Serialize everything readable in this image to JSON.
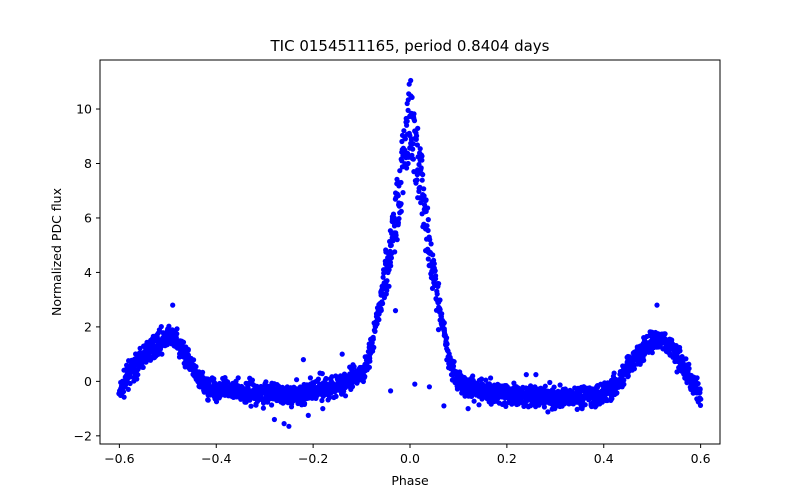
{
  "chart_data": {
    "type": "scatter",
    "title": "TIC 0154511165, period 0.8404 days",
    "xlabel": "Phase",
    "ylabel": "Normalized PDC flux",
    "xlim": [
      -0.64,
      0.64
    ],
    "ylim": [
      -2.3,
      11.8
    ],
    "xticks": [
      -0.6,
      -0.4,
      -0.2,
      0.0,
      0.2,
      0.4,
      0.6
    ],
    "xtick_labels": [
      "−0.6",
      "−0.4",
      "−0.2",
      "0.0",
      "0.2",
      "0.4",
      "0.6"
    ],
    "yticks": [
      -2,
      0,
      2,
      4,
      6,
      8,
      10
    ],
    "ytick_labels": [
      "−2",
      "0",
      "2",
      "4",
      "6",
      "8",
      "10"
    ],
    "grid": false,
    "marker_color": "#0000ff",
    "curve_profile": [
      [
        -0.6,
        -0.5
      ],
      [
        -0.58,
        0.3
      ],
      [
        -0.55,
        0.9
      ],
      [
        -0.52,
        1.4
      ],
      [
        -0.5,
        1.6
      ],
      [
        -0.48,
        1.45
      ],
      [
        -0.46,
        0.9
      ],
      [
        -0.44,
        0.1
      ],
      [
        -0.42,
        -0.2
      ],
      [
        -0.38,
        -0.3
      ],
      [
        -0.3,
        -0.45
      ],
      [
        -0.24,
        -0.5
      ],
      [
        -0.18,
        -0.3
      ],
      [
        -0.14,
        -0.1
      ],
      [
        -0.1,
        0.2
      ],
      [
        -0.08,
        1.2
      ],
      [
        -0.06,
        3.0
      ],
      [
        -0.04,
        5.3
      ],
      [
        -0.02,
        7.8
      ],
      [
        0.0,
        10.5
      ],
      [
        0.02,
        8.4
      ],
      [
        0.04,
        5.2
      ],
      [
        0.06,
        2.8
      ],
      [
        0.08,
        0.8
      ],
      [
        0.1,
        0.0
      ],
      [
        0.14,
        -0.3
      ],
      [
        0.2,
        -0.5
      ],
      [
        0.3,
        -0.6
      ],
      [
        0.38,
        -0.5
      ],
      [
        0.42,
        -0.2
      ],
      [
        0.44,
        0.2
      ],
      [
        0.46,
        0.7
      ],
      [
        0.5,
        1.5
      ],
      [
        0.52,
        1.6
      ],
      [
        0.54,
        1.3
      ],
      [
        0.56,
        0.7
      ],
      [
        0.58,
        0.0
      ],
      [
        0.6,
        -0.5
      ]
    ],
    "outliers": [
      [
        -0.49,
        2.8
      ],
      [
        0.51,
        2.8
      ],
      [
        -0.22,
        0.8
      ],
      [
        -0.14,
        1.0
      ],
      [
        -0.08,
        1.2
      ],
      [
        -0.03,
        2.6
      ],
      [
        0.01,
        -0.1
      ],
      [
        0.04,
        -0.2
      ],
      [
        -0.04,
        -0.35
      ],
      [
        -0.26,
        -1.55
      ],
      [
        -0.25,
        -1.65
      ],
      [
        -0.28,
        -1.4
      ],
      [
        -0.21,
        -1.25
      ],
      [
        -0.18,
        -1.0
      ],
      [
        0.27,
        -0.25
      ],
      [
        0.24,
        0.25
      ],
      [
        0.26,
        0.25
      ],
      [
        0.12,
        -1.0
      ],
      [
        0.07,
        -0.9
      ]
    ]
  }
}
